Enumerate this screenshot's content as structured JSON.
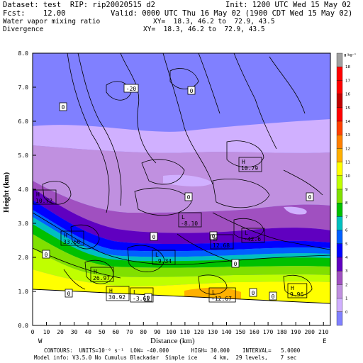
{
  "header": {
    "dataset_line": "Dataset: test  RIP: rip20020515 d2",
    "init_line": "Init: 1200 UTC Wed 15 May 02",
    "fcst_line": "Fcst:    12.00",
    "valid_line": "Valid: 0000 UTC Thu 16 May 02 (1900 CDT Wed 15 May 02)",
    "field1_name": "Water vapor mixing ratio",
    "field1_xy": "XY=  18.3, 46.2 to  72.9, 43.5",
    "field2_name": "Divergence",
    "field2_xy": "XY=  18.3, 46.2 to  72.9, 43.5"
  },
  "axes": {
    "ylabel": "Height (km)",
    "xlabel": "Distance (km)",
    "yticks": [
      "0.0",
      "1.0",
      "2.0",
      "3.0",
      "4.0",
      "5.0",
      "6.0",
      "7.0",
      "8.0"
    ],
    "xticks": [
      "0",
      "10",
      "20",
      "30",
      "40",
      "50",
      "60",
      "70",
      "80",
      "90",
      "100",
      "110",
      "120",
      "130",
      "140",
      "150",
      "160",
      "170",
      "180",
      "190",
      "200",
      "210"
    ],
    "west_label": "W",
    "east_label": "E"
  },
  "colorbar": {
    "unit": "g kg⁻¹",
    "levels": [
      "18",
      "17",
      "16",
      "15",
      "14",
      "13",
      "12",
      "11",
      "10",
      "9",
      "8",
      "7",
      "6",
      "5",
      "4",
      "3",
      "2",
      "1",
      "0"
    ],
    "colors": [
      "#a0a0a0",
      "#ff0000",
      "#ff0000",
      "#c00000",
      "#ff0000",
      "#ff4000",
      "#ff8000",
      "#ffb000",
      "#ffff00",
      "#c0ff00",
      "#80e000",
      "#00c000",
      "#00c0c0",
      "#0060ff",
      "#0000ff",
      "#6000c0",
      "#a050c0",
      "#c090e0",
      "#d0b0ff",
      "#8080ff"
    ]
  },
  "map": {
    "plot_area": {
      "x_range_km": [
        0,
        215
      ],
      "z_range_km": [
        0,
        8
      ]
    },
    "contour_labels": [
      {
        "text": "-20",
        "box": true
      },
      {
        "text": "0",
        "box": true
      },
      {
        "text": "0",
        "box": true
      },
      {
        "text": "0",
        "box": true
      },
      {
        "text": "0",
        "box": true
      },
      {
        "text": "0",
        "box": true
      },
      {
        "text": "0",
        "box": true
      },
      {
        "text": "0",
        "box": true
      },
      {
        "text": "0",
        "box": true
      },
      {
        "text": "0",
        "box": true
      },
      {
        "text": "0",
        "box": true
      },
      {
        "text": "0",
        "box": true
      },
      {
        "text": "0",
        "box": true
      }
    ],
    "extrema": [
      {
        "kind": "H",
        "value": "10.79"
      },
      {
        "kind": "H",
        "value": "10.72"
      },
      {
        "kind": "L",
        "value": "-8.10"
      },
      {
        "kind": "H",
        "value": "33.66"
      },
      {
        "kind": "H",
        "value": "12.68"
      },
      {
        "kind": "L",
        "value": "-42.6"
      },
      {
        "kind": "L",
        "value": "-9.34"
      },
      {
        "kind": "H",
        "value": "26.97"
      },
      {
        "kind": "H",
        "value": "30.92"
      },
      {
        "kind": "L",
        "value": "-3.61"
      },
      {
        "kind": "L",
        "value": "-12.67"
      },
      {
        "kind": "H",
        "value": "9.96"
      }
    ]
  },
  "footer": {
    "line1": "CONTOURS:  UNITS=10⁻⁶ s⁻¹  LOW= -40.000       HIGH= 30.000    INTERVAL=   5.0000",
    "line2": "Model info: V3.5.0 No Cumulus Blackadar  Simple ice     4 km,  29 levels,    7 sec"
  }
}
